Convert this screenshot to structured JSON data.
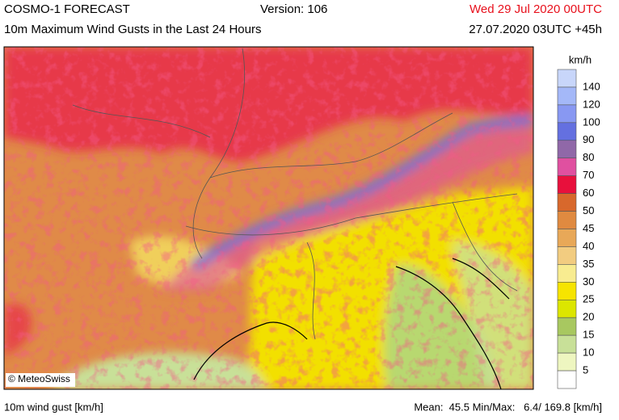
{
  "header": {
    "title": "COSMO-1 FORECAST",
    "version": "Version: 106",
    "valid_time": "Wed 29 Jul 2020 00UTC",
    "subtitle": "10m Maximum Wind Gusts in the Last 24 Hours",
    "run_time": "27.07.2020 03UTC +45h"
  },
  "map": {
    "credit": "© MeteoSwiss"
  },
  "legend": {
    "unit": "km/h",
    "labels": [
      "140",
      "120",
      "100",
      "90",
      "80",
      "70",
      "60",
      "50",
      "45",
      "40",
      "35",
      "30",
      "25",
      "20",
      "15",
      "10",
      "5"
    ],
    "colors": [
      "#c8d6fa",
      "#a4b8f8",
      "#8898f2",
      "#6470e0",
      "#9068a8",
      "#e050a0",
      "#e8103c",
      "#d8682c",
      "#e08a40",
      "#e8a858",
      "#f2cc80",
      "#f8ec90",
      "#f6e400",
      "#dce600",
      "#a8c860",
      "#c8e098",
      "#eef6c0",
      "#ffffff"
    ]
  },
  "footer": {
    "left": "10m wind gust [km/h]",
    "stats": "Mean:  45.5 Min/Max:   6.4/ 169.8 [km/h]"
  }
}
